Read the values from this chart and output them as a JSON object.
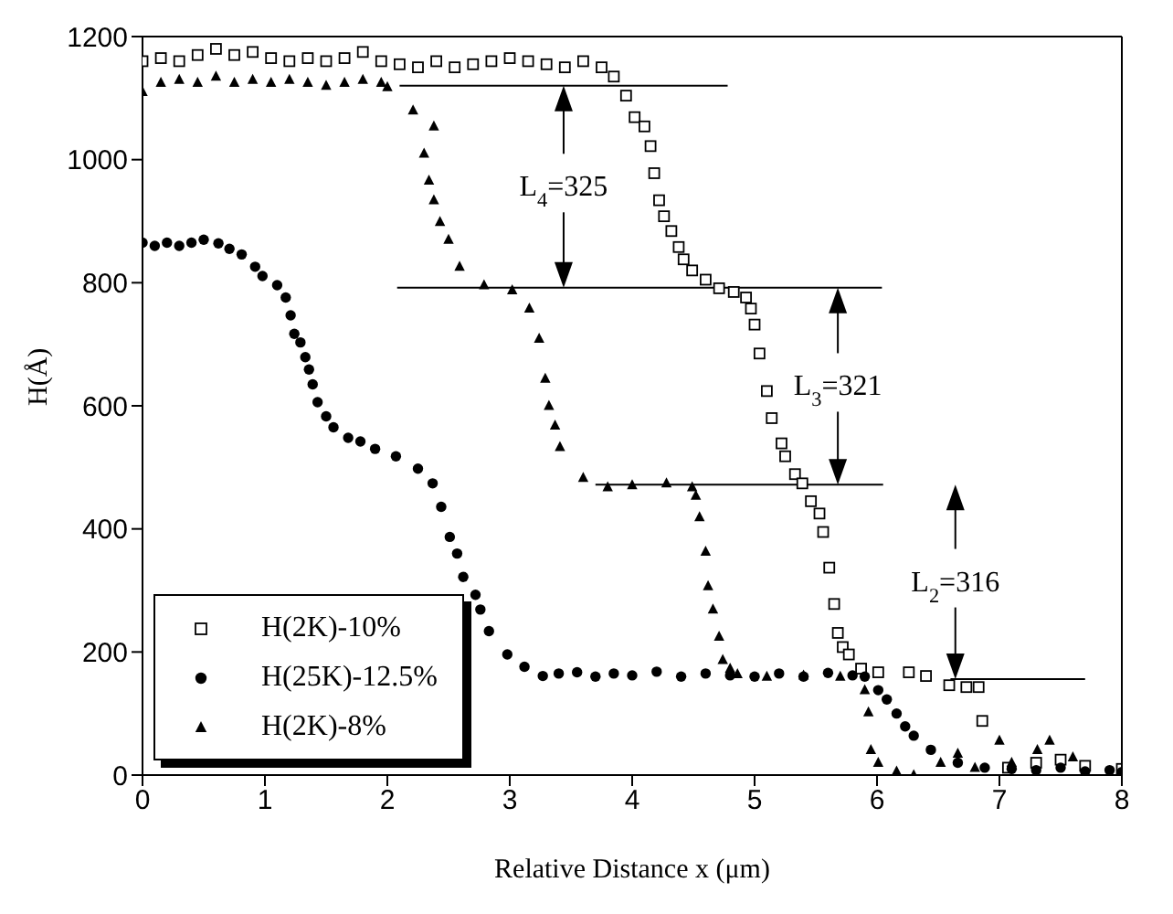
{
  "chart_data": {
    "type": "scatter",
    "xlabel": "Relative Distance x (μm)",
    "ylabel": "H(Å)",
    "xlim": [
      0,
      8
    ],
    "xticks": [
      0,
      1,
      2,
      3,
      4,
      5,
      6,
      7,
      8
    ],
    "ylim": [
      0,
      1200
    ],
    "yticks": [
      0,
      200,
      400,
      600,
      800,
      1000,
      1200
    ],
    "grid": false,
    "legend": "bottom left",
    "annotations": [
      "L$_{4}$=325",
      "L$_{3}$=321",
      "L$_{2}$=316"
    ],
    "series": [
      {
        "name": "H(2K)-10%",
        "color": "#000000",
        "marker": "square",
        "x": [
          0,
          0.15,
          0.3,
          0.45,
          0.6,
          0.75,
          0.9,
          1.05,
          1.2,
          1.35,
          1.5,
          1.65,
          1.8,
          1.95,
          2.1,
          2.25,
          2.4,
          2.55,
          2.7,
          2.85,
          3.0,
          3.15,
          3.3,
          3.45,
          3.6,
          3.75,
          3.85,
          3.95,
          4.02,
          4.1,
          4.15,
          4.18,
          4.22,
          4.26,
          4.32,
          4.38,
          4.42,
          4.49,
          4.6,
          4.71,
          4.83,
          4.93,
          4.97,
          5.0,
          5.04,
          5.1,
          5.14,
          5.22,
          5.25,
          5.33,
          5.39,
          5.46,
          5.53,
          5.56,
          5.61,
          5.65,
          5.68,
          5.72,
          5.77,
          5.87,
          6.01,
          6.26,
          6.4,
          6.59,
          6.73,
          6.83,
          6.86,
          7.07,
          7.3,
          7.5,
          7.7,
          8.0
        ],
        "values": [
          1160,
          1165,
          1160,
          1170,
          1180,
          1170,
          1175,
          1165,
          1160,
          1165,
          1160,
          1165,
          1175,
          1160,
          1155,
          1150,
          1160,
          1150,
          1155,
          1160,
          1165,
          1160,
          1155,
          1150,
          1160,
          1150,
          1135,
          1104,
          1069,
          1054,
          1022,
          978,
          934,
          908,
          884,
          858,
          838,
          820,
          805,
          791,
          785,
          776,
          758,
          732,
          685,
          624,
          580,
          539,
          518,
          489,
          474,
          445,
          425,
          395,
          337,
          278,
          231,
          208,
          196,
          173,
          167,
          167,
          161,
          146,
          143,
          143,
          88,
          12,
          20,
          25,
          15,
          10
        ]
      },
      {
        "name": "H(25K)-12.5%",
        "color": "#000000",
        "marker": "circle",
        "x": [
          0,
          0.1,
          0.2,
          0.3,
          0.4,
          0.5,
          0.62,
          0.71,
          0.81,
          0.92,
          0.98,
          1.1,
          1.17,
          1.21,
          1.24,
          1.29,
          1.33,
          1.36,
          1.39,
          1.43,
          1.5,
          1.56,
          1.68,
          1.78,
          1.9,
          2.07,
          2.25,
          2.37,
          2.44,
          2.51,
          2.57,
          2.62,
          2.72,
          2.76,
          2.83,
          2.98,
          3.12,
          3.27,
          3.4,
          3.55,
          3.7,
          3.85,
          4.0,
          4.2,
          4.4,
          4.6,
          4.8,
          5.0,
          5.2,
          5.4,
          5.6,
          5.8,
          5.9,
          6.01,
          6.08,
          6.16,
          6.23,
          6.3,
          6.44,
          6.66,
          6.88,
          7.1,
          7.3,
          7.5,
          7.7,
          7.9,
          8.0
        ],
        "values": [
          865,
          860,
          865,
          860,
          865,
          870,
          864,
          855,
          846,
          826,
          811,
          796,
          776,
          747,
          717,
          703,
          679,
          659,
          635,
          606,
          583,
          565,
          548,
          542,
          530,
          518,
          498,
          474,
          436,
          387,
          360,
          322,
          293,
          269,
          234,
          196,
          176,
          161,
          165,
          167,
          160,
          165,
          162,
          168,
          160,
          165,
          162,
          160,
          165,
          160,
          166,
          162,
          160,
          138,
          123,
          100,
          79,
          64,
          41,
          20,
          12,
          10,
          8,
          12,
          6,
          8,
          5
        ]
      },
      {
        "name": "H(2K)-8%",
        "color": "#000000",
        "marker": "triangle",
        "x": [
          0,
          0.15,
          0.3,
          0.45,
          0.6,
          0.75,
          0.9,
          1.05,
          1.2,
          1.35,
          1.5,
          1.65,
          1.8,
          1.95,
          2.0,
          2.21,
          2.38,
          2.3,
          2.34,
          2.38,
          2.43,
          2.5,
          2.59,
          2.79,
          3.02,
          3.16,
          3.24,
          3.29,
          3.32,
          3.37,
          3.41,
          3.6,
          3.8,
          4.0,
          4.28,
          4.49,
          4.52,
          4.55,
          4.6,
          4.62,
          4.66,
          4.71,
          4.74,
          4.8,
          4.86,
          5.1,
          5.4,
          5.7,
          5.9,
          5.93,
          5.95,
          6.01,
          6.16,
          6.3,
          6.52,
          6.66,
          6.8,
          7.0,
          7.1,
          7.31,
          7.41,
          7.6
        ],
        "values": [
          1110,
          1125,
          1130,
          1125,
          1135,
          1125,
          1130,
          1125,
          1130,
          1125,
          1120,
          1125,
          1130,
          1125,
          1118,
          1080,
          1054,
          1010,
          966,
          934,
          899,
          870,
          826,
          796,
          788,
          758,
          709,
          644,
          600,
          568,
          533,
          483,
          468,
          471,
          474,
          468,
          454,
          419,
          363,
          307,
          269,
          225,
          187,
          173,
          164,
          160,
          162,
          160,
          138,
          102,
          41,
          20,
          6,
          0,
          20,
          35,
          12,
          56,
          20,
          41,
          56,
          29
        ]
      },
      {
        "type": "line",
        "color": "#000000",
        "marker": "none",
        "x": [
          2.1,
          4.78
        ],
        "values": [
          1120,
          1120
        ]
      },
      {
        "type": "line",
        "color": "#000000",
        "marker": "none",
        "x": [
          2.08,
          6.04
        ],
        "values": [
          792,
          792
        ]
      },
      {
        "type": "line",
        "color": "#000000",
        "marker": "none",
        "x": [
          3.7,
          6.05
        ],
        "values": [
          472,
          472
        ]
      },
      {
        "type": "line",
        "color": "#000000",
        "marker": "none",
        "x": [
          6.6,
          7.7
        ],
        "values": [
          156,
          156
        ]
      }
    ]
  }
}
